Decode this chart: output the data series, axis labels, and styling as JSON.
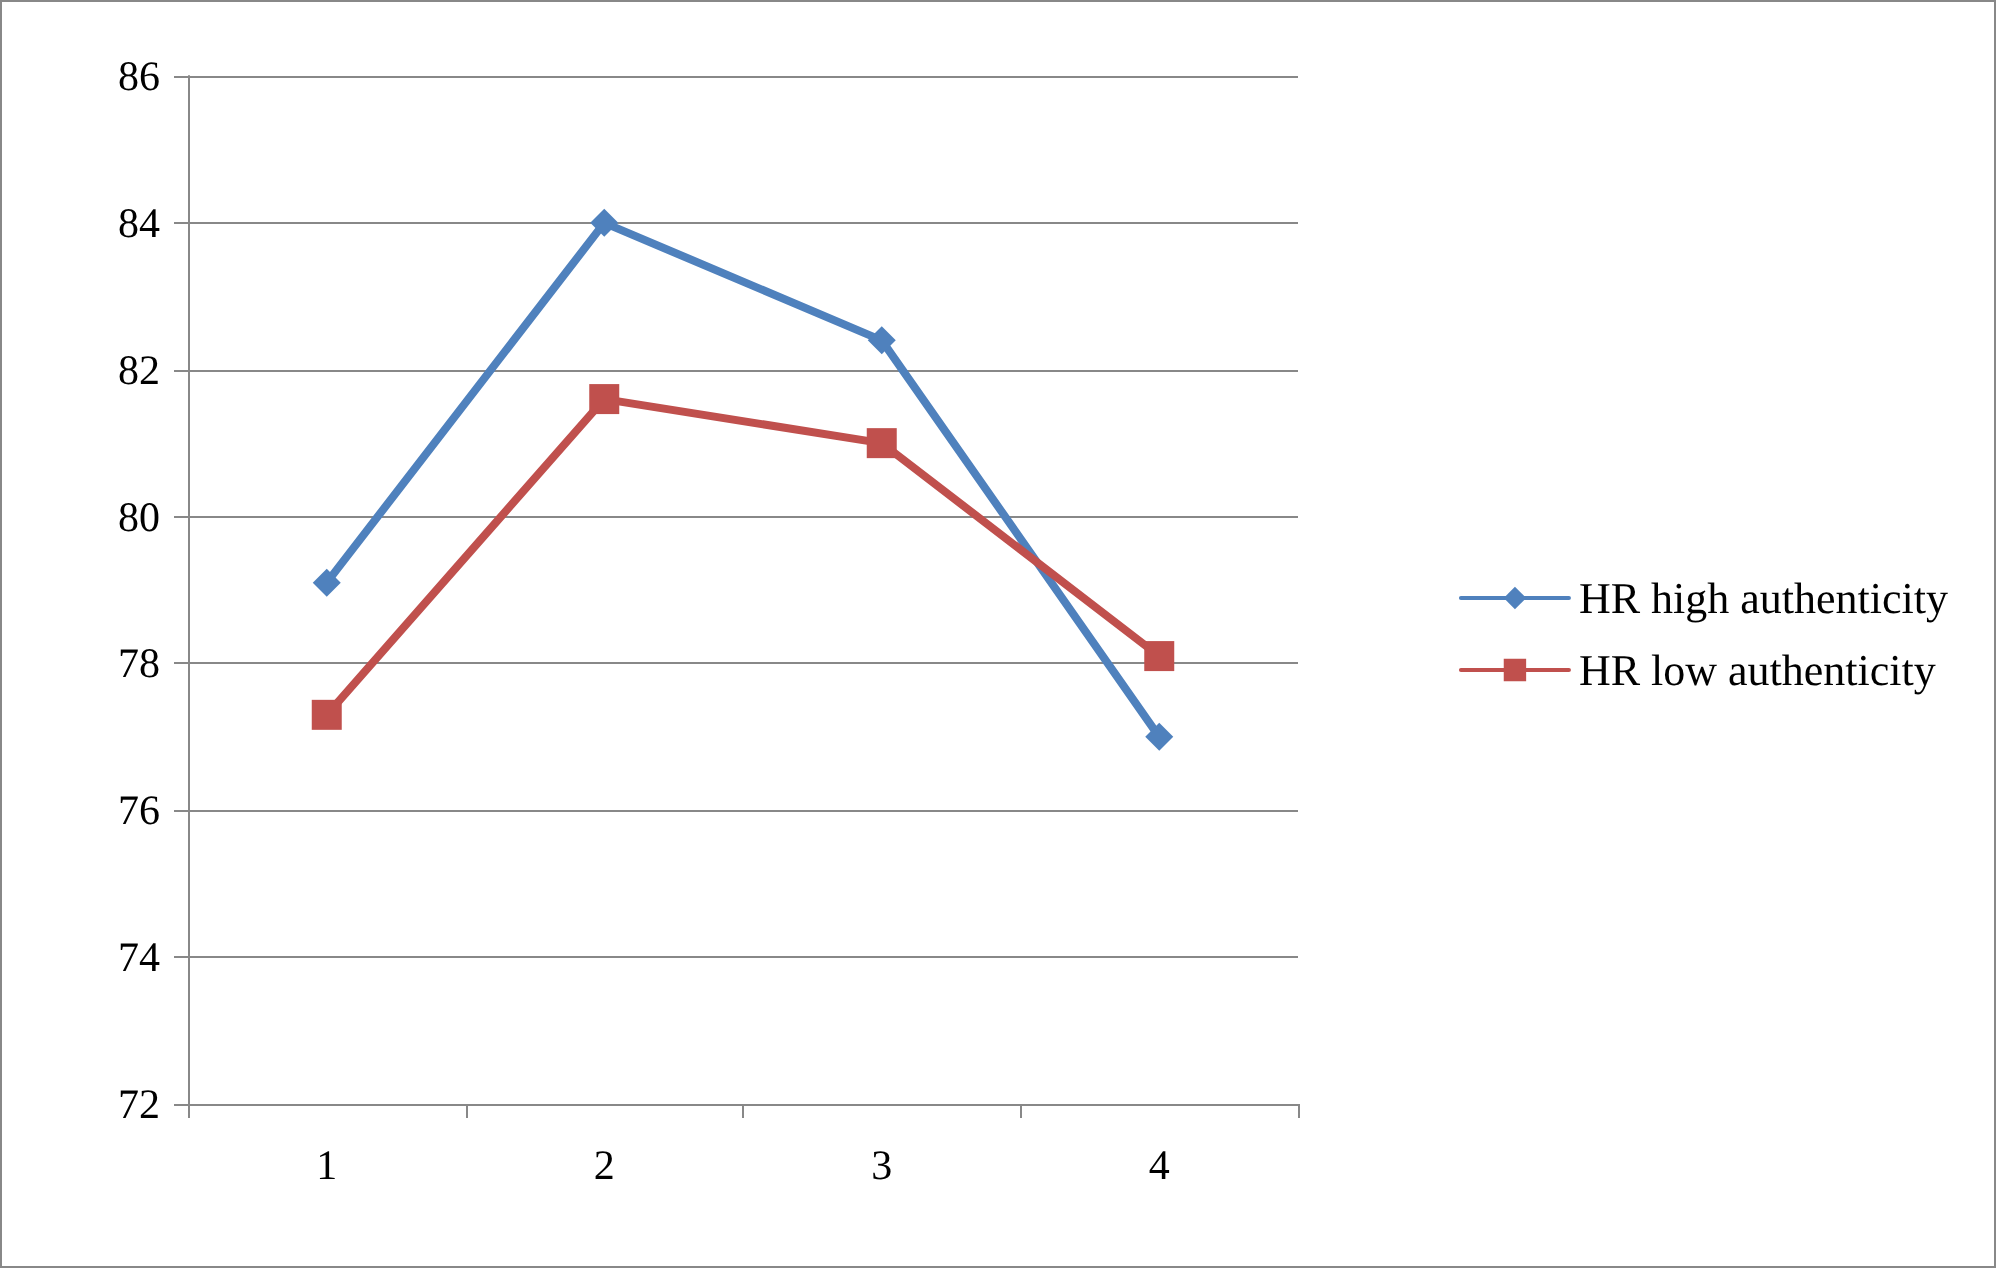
{
  "chart_data": {
    "type": "line",
    "categories": [
      "1",
      "2",
      "3",
      "4"
    ],
    "series": [
      {
        "name": "HR high authenticity",
        "color": "#4f81bd",
        "marker": "diamond",
        "values": [
          79.1,
          84.0,
          82.4,
          77.0
        ]
      },
      {
        "name": "HR low authenticity",
        "color": "#c0504d",
        "marker": "square",
        "values": [
          77.3,
          81.6,
          81.0,
          78.1
        ]
      }
    ],
    "ylim": [
      72,
      86
    ],
    "yticks": [
      72,
      74,
      76,
      78,
      80,
      82,
      84,
      86
    ],
    "grid": "y",
    "legend": "right",
    "line_style": "solid"
  }
}
